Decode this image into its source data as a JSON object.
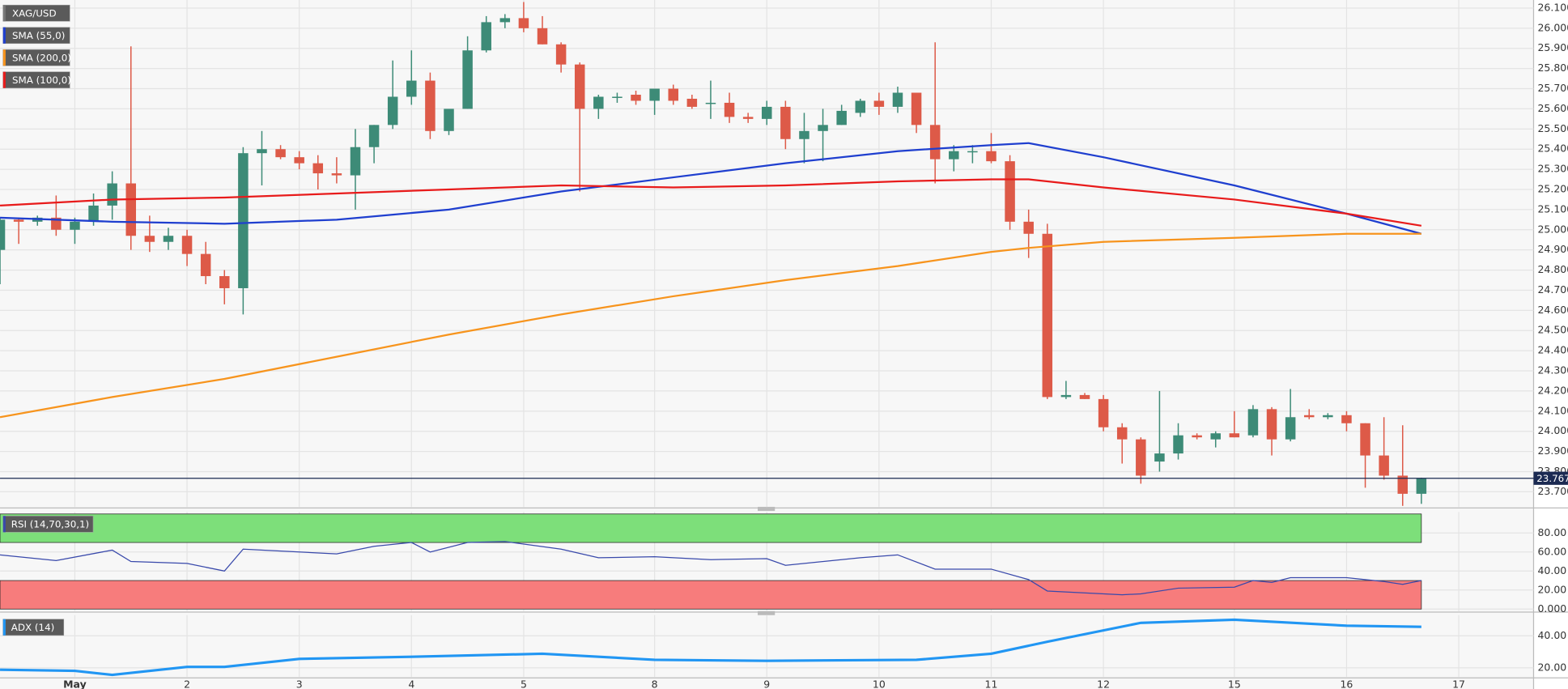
{
  "chart_data": [
    {
      "type": "candlestick",
      "symbol": "XAG/USD",
      "up_color": "#3d8b77",
      "down_color": "#dd5a48",
      "open": [
        24.9,
        25.05,
        25.04,
        25.06,
        25.0,
        25.04,
        25.12,
        25.23,
        24.97,
        24.94,
        24.97,
        24.88,
        24.77,
        24.71,
        25.38,
        25.4,
        25.36,
        25.33,
        25.28,
        25.27,
        25.41,
        25.52,
        25.66,
        25.74,
        25.49,
        25.6,
        25.89,
        26.03,
        26.05,
        26.0,
        25.92,
        25.82,
        25.6,
        25.66,
        25.67,
        25.64,
        25.7,
        25.65,
        25.63,
        25.63,
        25.56,
        25.55,
        25.61,
        25.45,
        25.49,
        25.52,
        25.58,
        25.64,
        25.61,
        25.68,
        25.52,
        25.35,
        25.39,
        25.39,
        25.34,
        25.04,
        24.98,
        24.17,
        24.18,
        24.16,
        24.02,
        23.96,
        23.85,
        23.89,
        23.98,
        23.96,
        23.99,
        23.98,
        24.11,
        23.96,
        24.08,
        24.07,
        24.08,
        24.04,
        23.88,
        23.78,
        23.69
      ],
      "high": [
        25.06,
        25.06,
        25.07,
        25.17,
        25.06,
        25.18,
        25.29,
        25.91,
        25.07,
        25.01,
        25.0,
        24.94,
        24.8,
        25.41,
        25.49,
        25.42,
        25.39,
        25.37,
        25.36,
        25.5,
        25.52,
        25.84,
        25.89,
        25.78,
        25.58,
        25.96,
        26.06,
        26.07,
        26.13,
        26.06,
        25.93,
        25.83,
        25.67,
        25.68,
        25.69,
        25.7,
        25.72,
        25.67,
        25.74,
        25.68,
        25.58,
        25.64,
        25.64,
        25.58,
        25.6,
        25.62,
        25.65,
        25.68,
        25.71,
        25.68,
        25.93,
        25.42,
        25.42,
        25.48,
        25.37,
        25.1,
        25.03,
        24.25,
        24.19,
        24.18,
        24.04,
        23.97,
        24.2,
        24.04,
        23.99,
        24.0,
        24.1,
        24.13,
        24.12,
        24.21,
        24.11,
        24.09,
        24.1,
        24.04,
        24.07,
        24.03,
        23.77
      ],
      "low": [
        24.73,
        24.93,
        25.02,
        24.97,
        24.93,
        25.02,
        25.05,
        24.9,
        24.89,
        24.9,
        24.82,
        24.73,
        24.63,
        24.58,
        25.22,
        25.35,
        25.3,
        25.2,
        25.23,
        25.1,
        25.33,
        25.5,
        25.62,
        25.45,
        25.47,
        25.6,
        25.88,
        26.0,
        25.98,
        25.92,
        25.78,
        25.19,
        25.55,
        25.63,
        25.62,
        25.57,
        25.62,
        25.6,
        25.55,
        25.53,
        25.53,
        25.52,
        25.4,
        25.33,
        25.34,
        25.52,
        25.56,
        25.57,
        25.58,
        25.48,
        25.23,
        25.29,
        25.33,
        25.33,
        25.0,
        24.86,
        24.16,
        24.16,
        24.16,
        24.0,
        23.84,
        23.74,
        23.8,
        23.86,
        23.96,
        23.92,
        23.97,
        23.97,
        23.88,
        23.95,
        24.06,
        24.06,
        24.0,
        23.72,
        23.76,
        23.63,
        23.64
      ],
      "close": [
        25.05,
        25.04,
        25.06,
        25.0,
        25.04,
        25.12,
        25.23,
        24.97,
        24.94,
        24.97,
        24.88,
        24.77,
        24.71,
        25.38,
        25.4,
        25.36,
        25.33,
        25.28,
        25.27,
        25.41,
        25.52,
        25.66,
        25.74,
        25.49,
        25.6,
        25.89,
        26.03,
        26.05,
        26.0,
        25.92,
        25.82,
        25.6,
        25.66,
        25.66,
        25.64,
        25.7,
        25.64,
        25.61,
        25.63,
        25.56,
        25.55,
        25.61,
        25.45,
        25.49,
        25.52,
        25.59,
        25.64,
        25.61,
        25.68,
        25.52,
        25.35,
        25.39,
        25.39,
        25.34,
        25.04,
        24.98,
        24.17,
        24.18,
        24.16,
        24.02,
        23.96,
        23.78,
        23.89,
        23.98,
        23.97,
        23.99,
        23.97,
        24.11,
        23.96,
        24.07,
        24.07,
        24.08,
        24.04,
        23.88,
        23.78,
        23.69,
        23.767
      ],
      "overlays": [
        {
          "name": "SMA (55,0)",
          "color": "#1f3fcf",
          "x": [
            0,
            6,
            12,
            18,
            24,
            30,
            36,
            42,
            48,
            53,
            55,
            59,
            66,
            72,
            76
          ],
          "values": [
            25.06,
            25.04,
            25.03,
            25.05,
            25.1,
            25.19,
            25.26,
            25.33,
            25.39,
            25.42,
            25.43,
            25.36,
            25.22,
            25.08,
            24.98
          ]
        },
        {
          "name": "SMA (200,0)",
          "color": "#f7941d",
          "x": [
            0,
            6,
            12,
            18,
            24,
            30,
            36,
            42,
            48,
            53,
            55,
            59,
            66,
            72,
            76
          ],
          "values": [
            24.07,
            24.17,
            24.26,
            24.37,
            24.48,
            24.58,
            24.67,
            24.75,
            24.82,
            24.89,
            24.91,
            24.94,
            24.96,
            24.98,
            24.98
          ]
        },
        {
          "name": "SMA (100,0)",
          "color": "#e81b1b",
          "x": [
            0,
            6,
            12,
            18,
            24,
            30,
            36,
            42,
            48,
            53,
            55,
            59,
            66,
            72,
            76
          ],
          "values": [
            25.12,
            25.15,
            25.16,
            25.18,
            25.2,
            25.22,
            25.21,
            25.22,
            25.24,
            25.25,
            25.25,
            25.21,
            25.15,
            25.08,
            25.02
          ]
        }
      ],
      "last_price": 23.767,
      "xlim": [
        0,
        82
      ],
      "xticks": [
        {
          "value": 4,
          "label": "May"
        },
        {
          "value": 10,
          "label": "2"
        },
        {
          "value": 16,
          "label": "3"
        },
        {
          "value": 22,
          "label": "4"
        },
        {
          "value": 28,
          "label": "5"
        },
        {
          "value": 35,
          "label": "8"
        },
        {
          "value": 41,
          "label": "9"
        },
        {
          "value": 47,
          "label": "10"
        },
        {
          "value": 53,
          "label": "11"
        },
        {
          "value": 59,
          "label": "12"
        },
        {
          "value": 66,
          "label": "15"
        },
        {
          "value": 72,
          "label": "16"
        },
        {
          "value": 78,
          "label": "17"
        }
      ],
      "ylim": [
        23.63,
        26.14
      ],
      "yticks": [
        {
          "value": 23.7,
          "label": "23.700"
        },
        {
          "value": 23.8,
          "label": "23.800"
        },
        {
          "value": 23.9,
          "label": "23.900"
        },
        {
          "value": 24.0,
          "label": "24.000"
        },
        {
          "value": 24.1,
          "label": "24.100"
        },
        {
          "value": 24.2,
          "label": "24.200"
        },
        {
          "value": 24.3,
          "label": "24.300"
        },
        {
          "value": 24.4,
          "label": "24.400"
        },
        {
          "value": 24.5,
          "label": "24.500"
        },
        {
          "value": 24.6,
          "label": "24.600"
        },
        {
          "value": 24.7,
          "label": "24.700"
        },
        {
          "value": 24.8,
          "label": "24.800"
        },
        {
          "value": 24.9,
          "label": "24.900"
        },
        {
          "value": 25.0,
          "label": "25.000"
        },
        {
          "value": 25.1,
          "label": "25.100"
        },
        {
          "value": 25.2,
          "label": "25.200"
        },
        {
          "value": 25.3,
          "label": "25.300"
        },
        {
          "value": 25.4,
          "label": "25.400"
        },
        {
          "value": 25.5,
          "label": "25.500"
        },
        {
          "value": 25.6,
          "label": "25.600"
        },
        {
          "value": 25.7,
          "label": "25.700"
        },
        {
          "value": 25.8,
          "label": "25.800"
        },
        {
          "value": 25.9,
          "label": "25.900"
        },
        {
          "value": 26.0,
          "label": "26.000"
        },
        {
          "value": 26.1,
          "label": "26.100"
        }
      ],
      "grid": true
    },
    {
      "type": "line",
      "series": [
        {
          "name": "RSI (14,70,30,1)",
          "color": "#3949ab",
          "x": [
            0,
            3,
            6,
            7,
            10,
            12,
            13,
            18,
            20,
            22,
            23,
            25,
            27,
            30,
            32,
            35,
            38,
            41,
            42,
            46,
            48,
            50,
            53,
            55,
            56,
            60,
            61,
            63,
            66,
            67,
            68,
            69,
            72,
            74,
            75,
            76
          ],
          "values": [
            57,
            51,
            62,
            50,
            48,
            40,
            63,
            58,
            66,
            70,
            60,
            70,
            71,
            63,
            54,
            55,
            52,
            53,
            46,
            54,
            57,
            42,
            42,
            31,
            19,
            15,
            16,
            22,
            23,
            30,
            28,
            33,
            33,
            29,
            26,
            30
          ]
        }
      ],
      "bands": [
        {
          "from": 70,
          "to": 100,
          "color": "#7ddf7a"
        },
        {
          "from": 0,
          "to": 30,
          "color": "#f77c7c"
        }
      ],
      "xlim": [
        0,
        82
      ],
      "ylim": [
        0,
        100
      ],
      "yticks": [
        {
          "value": 0,
          "label": "0.000"
        },
        {
          "value": 20,
          "label": "20.00"
        },
        {
          "value": 40,
          "label": "40.00"
        },
        {
          "value": 60,
          "label": "60.00"
        },
        {
          "value": 80,
          "label": "80.00"
        }
      ],
      "grid": true
    },
    {
      "type": "line",
      "series": [
        {
          "name": "ADX (14)",
          "color": "#2196f3",
          "x": [
            0,
            4,
            6,
            10,
            12,
            16,
            22,
            29,
            35,
            41,
            49,
            53,
            56,
            61,
            66,
            72,
            76
          ],
          "values": [
            18.8,
            18.1,
            15.6,
            20.6,
            20.6,
            25.6,
            26.9,
            28.8,
            25,
            24.4,
            25,
            28.8,
            36.3,
            48.1,
            50,
            46.3,
            45.6
          ]
        }
      ],
      "xlim": [
        0,
        82
      ],
      "ylim": [
        15,
        51
      ],
      "yticks": [
        {
          "value": 20,
          "label": "20.00"
        },
        {
          "value": 40,
          "label": "40.00"
        }
      ],
      "grid": true
    }
  ]
}
